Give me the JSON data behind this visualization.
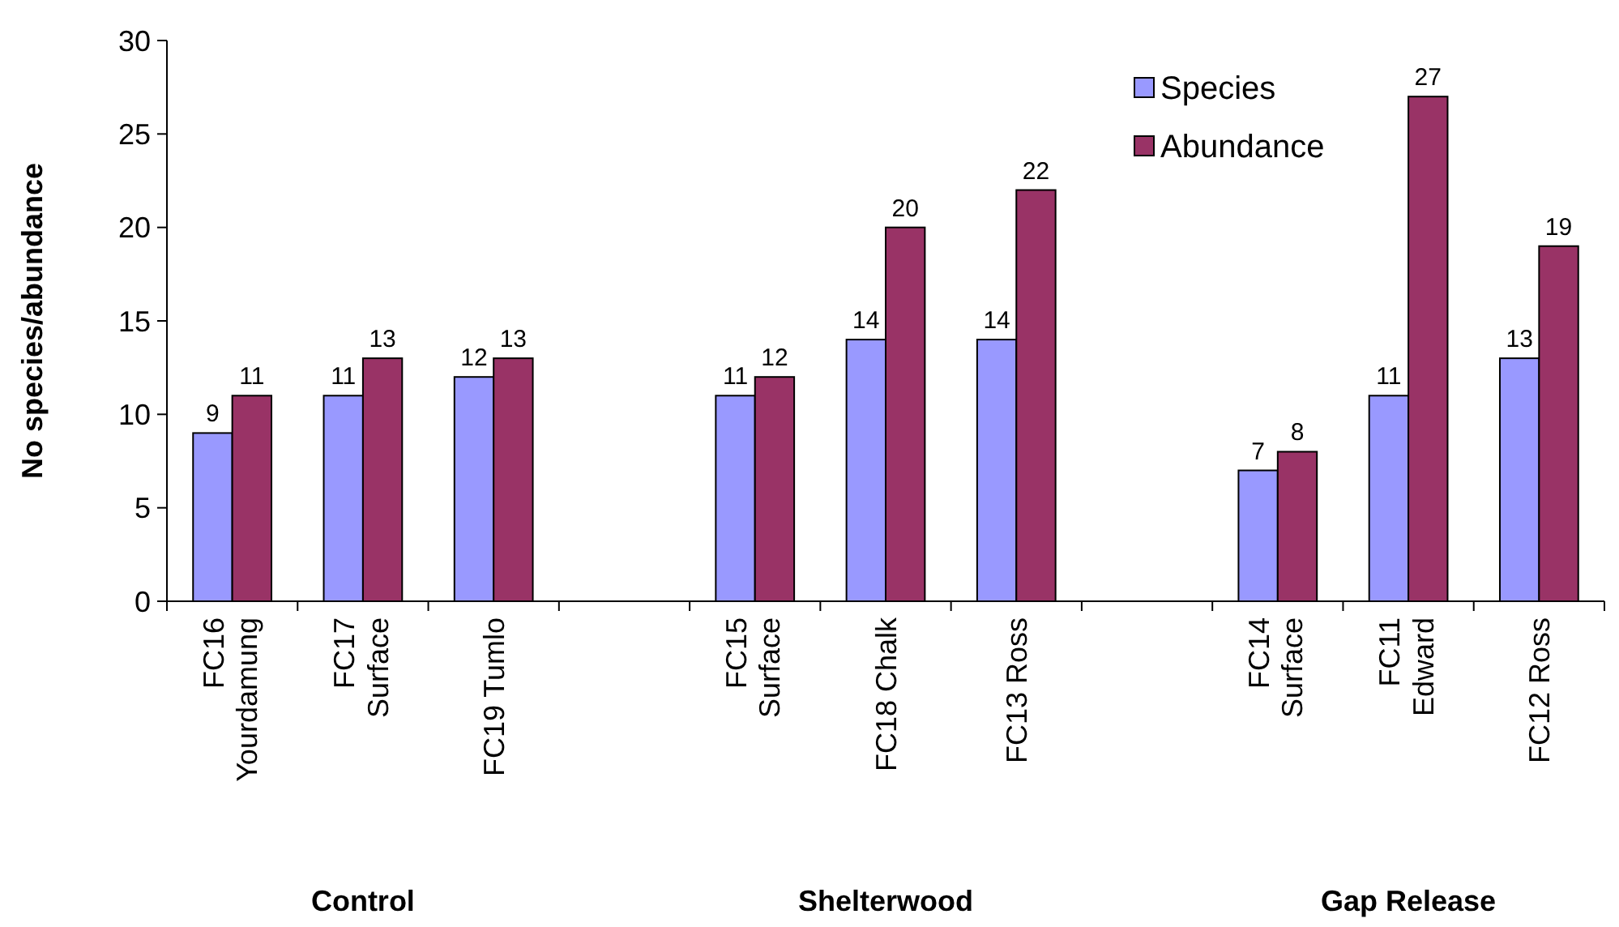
{
  "chart_data": {
    "type": "bar",
    "ylabel": "No species/abundance",
    "categories": [
      "FC16 Yourdamung",
      "FC17 Surface",
      "FC19 Tumlo",
      null,
      "FC15 Surface",
      "FC18 Chalk",
      "FC13 Ross",
      null,
      "FC14 Surface",
      "FC11 Edward",
      "FC12 Ross"
    ],
    "series": [
      {
        "name": "Species",
        "color": "#9999ff",
        "values": [
          9,
          11,
          12,
          null,
          11,
          14,
          14,
          null,
          7,
          11,
          13
        ]
      },
      {
        "name": "Abundance",
        "color": "#993366",
        "values": [
          11,
          13,
          13,
          null,
          12,
          20,
          22,
          null,
          8,
          27,
          19
        ]
      }
    ],
    "ylim": [
      0,
      30
    ],
    "yticks": [
      0,
      5,
      10,
      15,
      20,
      25,
      30
    ],
    "grid": false,
    "legend": "top right",
    "data_labels": true,
    "annotations": [
      "Control",
      "Shelterwood",
      "Gap Release"
    ]
  }
}
